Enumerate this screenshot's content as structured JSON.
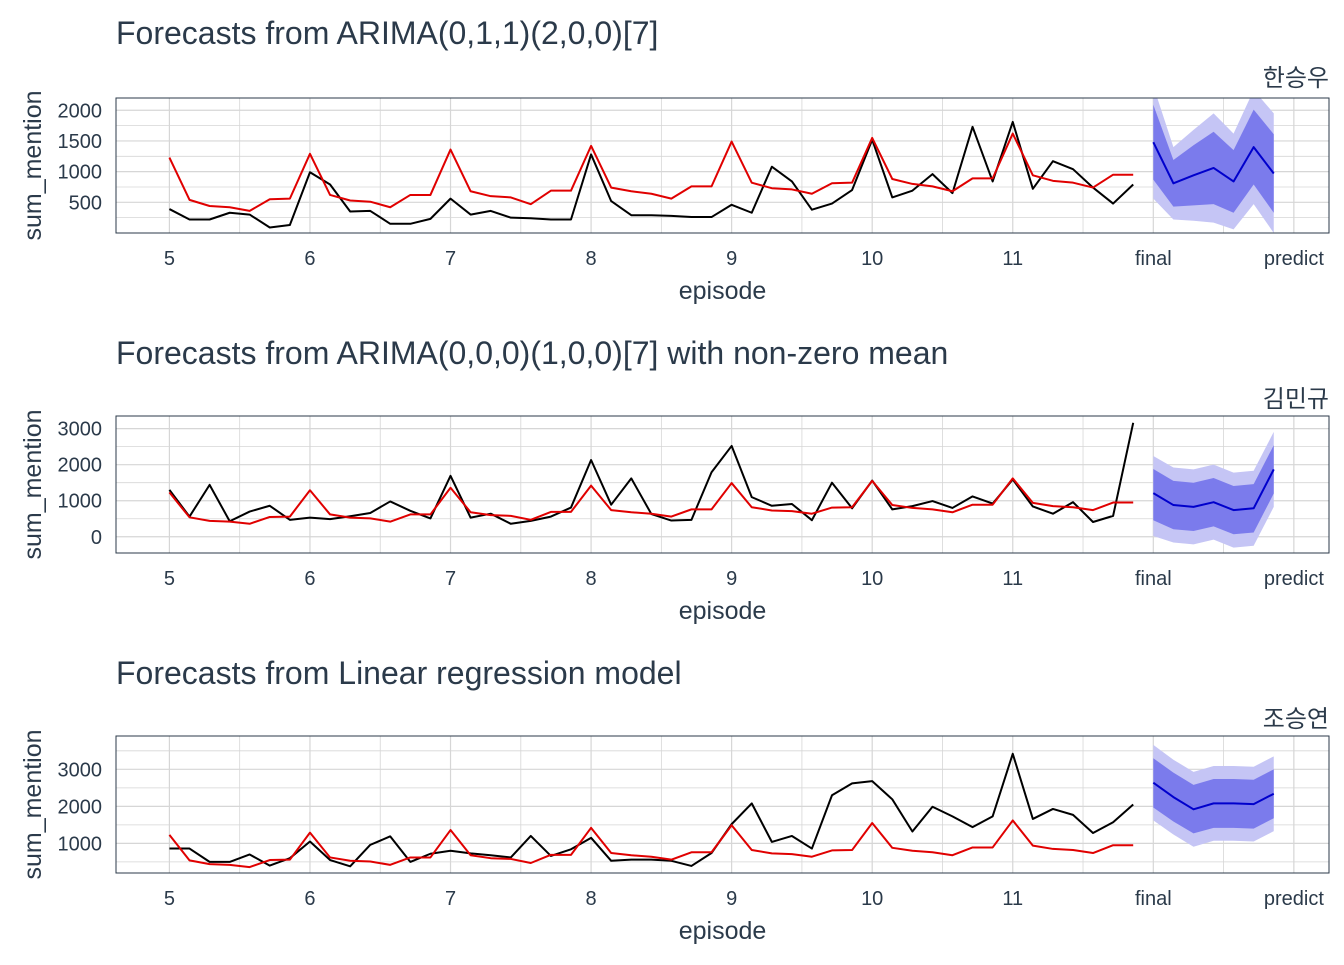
{
  "chart_data": [
    {
      "type": "line",
      "title": "Forecasts from ARIMA(0,1,1)(2,0,0)[7]",
      "facet_label": "한승우",
      "xlabel": "episode",
      "ylabel": "sum_mention",
      "x_ticks": [
        {
          "x": 5,
          "label": "5"
        },
        {
          "x": 6,
          "label": "6"
        },
        {
          "x": 7,
          "label": "7"
        },
        {
          "x": 8,
          "label": "8"
        },
        {
          "x": 9,
          "label": "9"
        },
        {
          "x": 10,
          "label": "10"
        },
        {
          "x": 11,
          "label": "11"
        },
        {
          "x": 12,
          "label": "final"
        },
        {
          "x": 13,
          "label": "predict"
        }
      ],
      "y_ticks": [
        500,
        1000,
        1500,
        2000
      ],
      "xlim": [
        4.62,
        13.25
      ],
      "ylim": [
        0,
        2200
      ],
      "grid": true,
      "series": [
        {
          "color": "#000000",
          "x": [
            5,
            5.143,
            5.286,
            5.429,
            5.571,
            5.714,
            5.857,
            6,
            6.143,
            6.286,
            6.429,
            6.571,
            6.714,
            6.857,
            7,
            7.143,
            7.286,
            7.429,
            7.571,
            7.714,
            7.857,
            8,
            8.143,
            8.286,
            8.429,
            8.571,
            8.714,
            8.857,
            9,
            9.143,
            9.286,
            9.429,
            9.571,
            9.714,
            9.857,
            10,
            10.143,
            10.286,
            10.429,
            10.571,
            10.714,
            10.857,
            11,
            11.143,
            11.286,
            11.429,
            11.571,
            11.714,
            11.857
          ],
          "values": [
            390,
            220,
            220,
            330,
            300,
            90,
            130,
            990,
            790,
            350,
            360,
            150,
            150,
            230,
            560,
            300,
            360,
            250,
            240,
            220,
            220,
            1280,
            520,
            290,
            290,
            280,
            260,
            260,
            460,
            330,
            1080,
            840,
            380,
            480,
            700,
            1520,
            580,
            690,
            960,
            650,
            1730,
            840,
            1810,
            720,
            1170,
            1040,
            740,
            480,
            790
          ]
        },
        {
          "color": "#e00000",
          "x": [
            5,
            5.143,
            5.286,
            5.429,
            5.571,
            5.714,
            5.857,
            6,
            6.143,
            6.286,
            6.429,
            6.571,
            6.714,
            6.857,
            7,
            7.143,
            7.286,
            7.429,
            7.571,
            7.714,
            7.857,
            8,
            8.143,
            8.286,
            8.429,
            8.571,
            8.714,
            8.857,
            9,
            9.143,
            9.286,
            9.429,
            9.571,
            9.714,
            9.857,
            10,
            10.143,
            10.286,
            10.429,
            10.571,
            10.714,
            10.857,
            11,
            11.143,
            11.286,
            11.429,
            11.571,
            11.714,
            11.857
          ],
          "values": [
            1230,
            540,
            440,
            420,
            360,
            550,
            560,
            1290,
            620,
            530,
            510,
            420,
            620,
            620,
            1360,
            680,
            600,
            580,
            470,
            690,
            690,
            1420,
            740,
            680,
            640,
            560,
            760,
            760,
            1490,
            820,
            730,
            710,
            640,
            810,
            820,
            1550,
            880,
            800,
            760,
            680,
            890,
            890,
            1620,
            940,
            850,
            820,
            740,
            950,
            950
          ]
        },
        {
          "color": "#0000cc",
          "x": [
            12,
            12.143,
            12.286,
            12.429,
            12.571,
            12.714,
            12.857
          ],
          "values": [
            1480,
            810,
            940,
            1060,
            840,
            1400,
            970
          ],
          "band80": [
            [
              870,
              2090
            ],
            [
              430,
              1190
            ],
            [
              450,
              1430
            ],
            [
              470,
              1650
            ],
            [
              330,
              1350
            ],
            [
              790,
              2010
            ],
            [
              330,
              1610
            ]
          ],
          "band95": [
            [
              560,
              2400
            ],
            [
              220,
              1400
            ],
            [
              200,
              1680
            ],
            [
              170,
              1950
            ],
            [
              60,
              1620
            ],
            [
              470,
              2330
            ],
            [
              0,
              1950
            ]
          ]
        }
      ]
    },
    {
      "type": "line",
      "title": "Forecasts from ARIMA(0,0,0)(1,0,0)[7] with non-zero mean",
      "facet_label": "김민규",
      "xlabel": "episode",
      "ylabel": "sum_mention",
      "x_ticks": [
        {
          "x": 5,
          "label": "5"
        },
        {
          "x": 6,
          "label": "6"
        },
        {
          "x": 7,
          "label": "7"
        },
        {
          "x": 8,
          "label": "8"
        },
        {
          "x": 9,
          "label": "9"
        },
        {
          "x": 10,
          "label": "10"
        },
        {
          "x": 11,
          "label": "11"
        },
        {
          "x": 12,
          "label": "final"
        },
        {
          "x": 13,
          "label": "predict"
        }
      ],
      "y_ticks": [
        0,
        1000,
        2000,
        3000
      ],
      "xlim": [
        4.62,
        13.25
      ],
      "ylim": [
        -450,
        3350
      ],
      "grid": true,
      "series": [
        {
          "color": "#000000",
          "x": [
            5,
            5.143,
            5.286,
            5.429,
            5.571,
            5.714,
            5.857,
            6,
            6.143,
            6.286,
            6.429,
            6.571,
            6.714,
            6.857,
            7,
            7.143,
            7.286,
            7.429,
            7.571,
            7.714,
            7.857,
            8,
            8.143,
            8.286,
            8.429,
            8.571,
            8.714,
            8.857,
            9,
            9.143,
            9.286,
            9.429,
            9.571,
            9.714,
            9.857,
            10,
            10.143,
            10.286,
            10.429,
            10.571,
            10.714,
            10.857,
            11,
            11.143,
            11.286,
            11.429,
            11.571,
            11.714,
            11.857
          ],
          "values": [
            1300,
            560,
            1440,
            430,
            700,
            860,
            470,
            530,
            490,
            570,
            660,
            980,
            720,
            510,
            1690,
            530,
            640,
            360,
            440,
            560,
            810,
            2130,
            890,
            1620,
            630,
            450,
            470,
            1790,
            2520,
            1100,
            860,
            910,
            460,
            1500,
            790,
            1560,
            760,
            850,
            990,
            800,
            1120,
            920,
            1590,
            840,
            640,
            960,
            410,
            580,
            3160
          ]
        },
        {
          "color": "#e00000",
          "x": [
            5,
            5.143,
            5.286,
            5.429,
            5.571,
            5.714,
            5.857,
            6,
            6.143,
            6.286,
            6.429,
            6.571,
            6.714,
            6.857,
            7,
            7.143,
            7.286,
            7.429,
            7.571,
            7.714,
            7.857,
            8,
            8.143,
            8.286,
            8.429,
            8.571,
            8.714,
            8.857,
            9,
            9.143,
            9.286,
            9.429,
            9.571,
            9.714,
            9.857,
            10,
            10.143,
            10.286,
            10.429,
            10.571,
            10.714,
            10.857,
            11,
            11.143,
            11.286,
            11.429,
            11.571,
            11.714,
            11.857
          ],
          "values": [
            1230,
            540,
            440,
            420,
            360,
            550,
            560,
            1290,
            620,
            530,
            510,
            420,
            620,
            620,
            1360,
            680,
            600,
            580,
            470,
            690,
            690,
            1420,
            740,
            680,
            640,
            560,
            760,
            760,
            1490,
            820,
            730,
            710,
            640,
            810,
            820,
            1550,
            880,
            800,
            760,
            680,
            890,
            890,
            1620,
            940,
            850,
            820,
            740,
            950,
            950
          ]
        },
        {
          "color": "#0000cc",
          "x": [
            12,
            12.143,
            12.286,
            12.429,
            12.571,
            12.714,
            12.857
          ],
          "values": [
            1210,
            880,
            830,
            960,
            740,
            790,
            1870
          ],
          "band80": [
            [
              460,
              1880
            ],
            [
              210,
              1550
            ],
            [
              160,
              1500
            ],
            [
              290,
              1630
            ],
            [
              70,
              1410
            ],
            [
              120,
              1460
            ],
            [
              1200,
              2540
            ]
          ],
          "band95": [
            [
              20,
              2240
            ],
            [
              -160,
              1920
            ],
            [
              -210,
              1870
            ],
            [
              -80,
              2000
            ],
            [
              -300,
              1780
            ],
            [
              -250,
              1830
            ],
            [
              830,
              2910
            ]
          ]
        }
      ]
    },
    {
      "type": "line",
      "title": "Forecasts from Linear regression model",
      "facet_label": "조승연",
      "xlabel": "episode",
      "ylabel": "sum_mention",
      "x_ticks": [
        {
          "x": 5,
          "label": "5"
        },
        {
          "x": 6,
          "label": "6"
        },
        {
          "x": 7,
          "label": "7"
        },
        {
          "x": 8,
          "label": "8"
        },
        {
          "x": 9,
          "label": "9"
        },
        {
          "x": 10,
          "label": "10"
        },
        {
          "x": 11,
          "label": "11"
        },
        {
          "x": 12,
          "label": "final"
        },
        {
          "x": 13,
          "label": "predict"
        }
      ],
      "y_ticks": [
        1000,
        2000,
        3000
      ],
      "xlim": [
        4.62,
        13.25
      ],
      "ylim": [
        200,
        3900
      ],
      "grid": true,
      "series": [
        {
          "color": "#000000",
          "x": [
            5,
            5.143,
            5.286,
            5.429,
            5.571,
            5.714,
            5.857,
            6,
            6.143,
            6.286,
            6.429,
            6.571,
            6.714,
            6.857,
            7,
            7.143,
            7.286,
            7.429,
            7.571,
            7.714,
            7.857,
            8,
            8.143,
            8.286,
            8.429,
            8.571,
            8.714,
            8.857,
            9,
            9.143,
            9.286,
            9.429,
            9.571,
            9.714,
            9.857,
            10,
            10.143,
            10.286,
            10.429,
            10.571,
            10.714,
            10.857,
            11,
            11.143,
            11.286,
            11.429,
            11.571,
            11.714,
            11.857
          ],
          "values": [
            860,
            860,
            500,
            500,
            700,
            400,
            600,
            1050,
            550,
            380,
            960,
            1190,
            500,
            720,
            800,
            730,
            680,
            620,
            1200,
            660,
            840,
            1150,
            530,
            560,
            560,
            530,
            390,
            740,
            1520,
            2080,
            1040,
            1200,
            860,
            2300,
            2620,
            2680,
            2190,
            1320,
            1990,
            1730,
            1440,
            1730,
            3420,
            1660,
            1930,
            1770,
            1280,
            1570,
            2050
          ]
        },
        {
          "color": "#e00000",
          "x": [
            5,
            5.143,
            5.286,
            5.429,
            5.571,
            5.714,
            5.857,
            6,
            6.143,
            6.286,
            6.429,
            6.571,
            6.714,
            6.857,
            7,
            7.143,
            7.286,
            7.429,
            7.571,
            7.714,
            7.857,
            8,
            8.143,
            8.286,
            8.429,
            8.571,
            8.714,
            8.857,
            9,
            9.143,
            9.286,
            9.429,
            9.571,
            9.714,
            9.857,
            10,
            10.143,
            10.286,
            10.429,
            10.571,
            10.714,
            10.857,
            11,
            11.143,
            11.286,
            11.429,
            11.571,
            11.714,
            11.857
          ],
          "values": [
            1230,
            540,
            440,
            420,
            360,
            550,
            560,
            1290,
            620,
            530,
            510,
            420,
            620,
            620,
            1360,
            680,
            600,
            580,
            470,
            690,
            690,
            1420,
            740,
            680,
            640,
            560,
            760,
            760,
            1490,
            820,
            730,
            710,
            640,
            810,
            820,
            1550,
            880,
            800,
            760,
            680,
            890,
            890,
            1620,
            940,
            850,
            820,
            740,
            950,
            950
          ]
        },
        {
          "color": "#0000cc",
          "x": [
            12,
            12.143,
            12.286,
            12.429,
            12.571,
            12.714,
            12.857
          ],
          "values": [
            2640,
            2250,
            1920,
            2080,
            2080,
            2060,
            2340
          ],
          "band80": [
            [
              1970,
              3300
            ],
            [
              1590,
              2910
            ],
            [
              1270,
              2580
            ],
            [
              1420,
              2740
            ],
            [
              1420,
              2740
            ],
            [
              1400,
              2720
            ],
            [
              1680,
              3000
            ]
          ],
          "band95": [
            [
              1620,
              3660
            ],
            [
              1240,
              3260
            ],
            [
              910,
              2930
            ],
            [
              1070,
              3090
            ],
            [
              1070,
              3090
            ],
            [
              1050,
              3070
            ],
            [
              1330,
              3350
            ]
          ]
        }
      ]
    }
  ],
  "colors": {
    "text_title": "#2b3a4a",
    "text_axis": "#2b3a4a",
    "panel_border": "#2b3a4a",
    "grid": "#d6d6d6",
    "band80": "#7b7bec",
    "band95": "#c5c5f5",
    "forecast_line": "#0000cc",
    "actual_line": "#000000",
    "fitted_line": "#e00000"
  }
}
